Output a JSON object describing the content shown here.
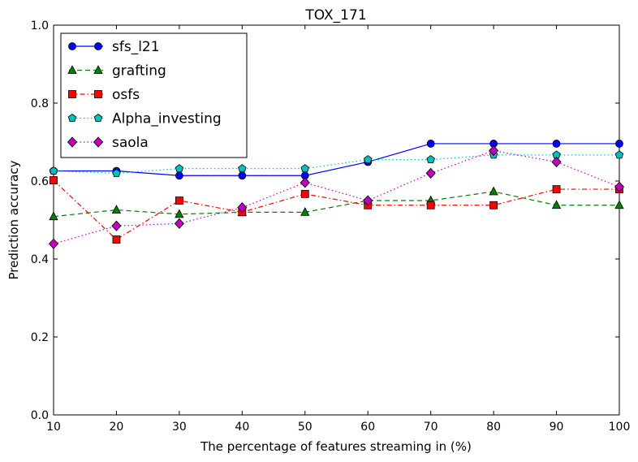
{
  "chart_data": {
    "type": "line",
    "title": "TOX_171",
    "xlabel": "The percentage of features streaming in (%)",
    "ylabel": "Prediction accuracy",
    "xlim": [
      10,
      100
    ],
    "ylim": [
      0.0,
      1.0
    ],
    "xticks": [
      10,
      20,
      30,
      40,
      50,
      60,
      70,
      80,
      90,
      100
    ],
    "yticks": [
      0.0,
      0.2,
      0.4,
      0.6,
      0.8,
      1.0
    ],
    "ytick_labels": [
      "0.0",
      "0.2",
      "0.4",
      "0.6",
      "0.8",
      "1.0"
    ],
    "grid": false,
    "legend_position": "top-left",
    "x": [
      10,
      20,
      30,
      40,
      50,
      60,
      70,
      80,
      90,
      100
    ],
    "series": [
      {
        "name": "sfs_l21",
        "color": "#0000ff",
        "marker": "circle",
        "dash": "solid",
        "values": [
          0.626,
          0.626,
          0.614,
          0.614,
          0.614,
          0.649,
          0.696,
          0.696,
          0.696,
          0.696
        ]
      },
      {
        "name": "grafting",
        "color": "#007f00",
        "marker": "triangle",
        "dash": "dashed",
        "values": [
          0.509,
          0.526,
          0.515,
          0.52,
          0.52,
          0.55,
          0.55,
          0.573,
          0.538,
          0.538
        ]
      },
      {
        "name": "osfs",
        "color": "#ff0000",
        "marker": "square",
        "dash": "dashdot",
        "values": [
          0.602,
          0.45,
          0.55,
          0.52,
          0.567,
          0.538,
          0.538,
          0.538,
          0.579,
          0.579
        ]
      },
      {
        "name": "Alpha_investing",
        "color": "#00bfbf",
        "marker": "pentagon",
        "dash": "dotted",
        "values": [
          0.626,
          0.62,
          0.632,
          0.632,
          0.632,
          0.655,
          0.655,
          0.667,
          0.667,
          0.667
        ]
      },
      {
        "name": "saola",
        "color": "#bf00bf",
        "marker": "diamond",
        "dash": "dotted",
        "values": [
          0.439,
          0.485,
          0.491,
          0.532,
          0.596,
          0.55,
          0.62,
          0.678,
          0.649,
          0.585
        ]
      }
    ]
  }
}
